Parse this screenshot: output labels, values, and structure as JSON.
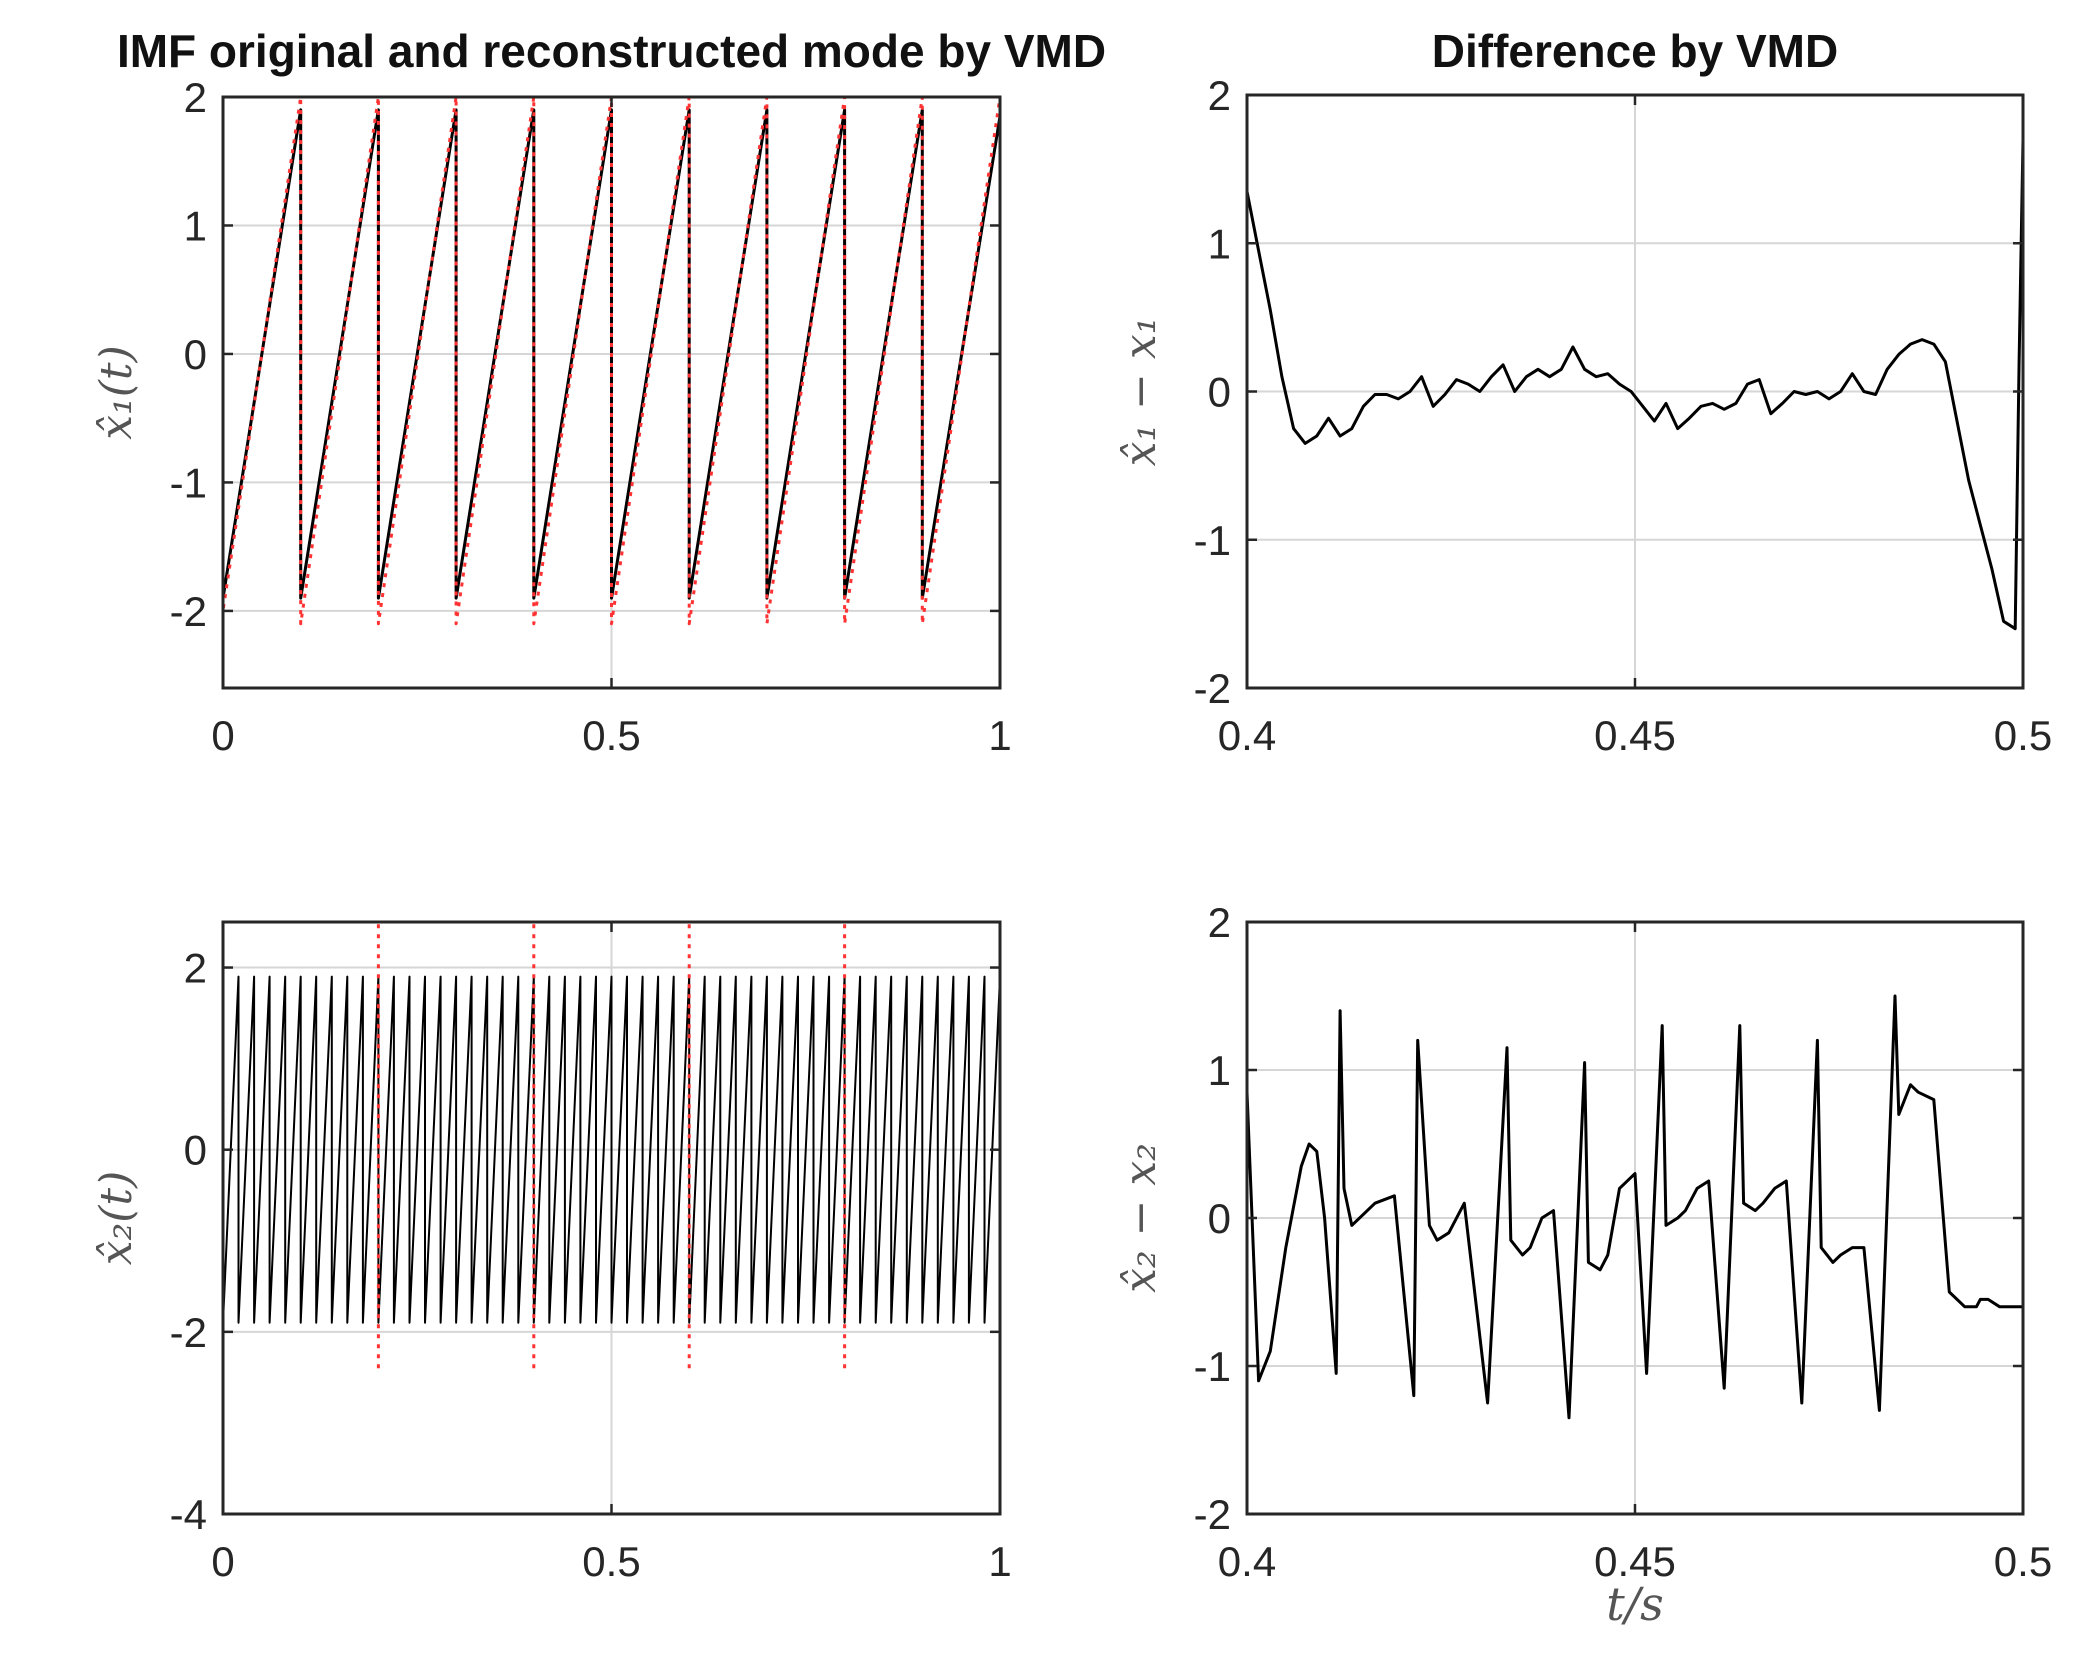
{
  "chart_data": [
    {
      "id": "top-left",
      "type": "line",
      "title": "IMF original and reconstructed mode by VMD",
      "xlabel": "",
      "ylabel": "x̂₁(t)",
      "xlim": [
        0,
        1
      ],
      "ylim": [
        -2.6,
        2
      ],
      "xticks": [
        0,
        0.5,
        1
      ],
      "xtick_labels": [
        "0",
        "0.5",
        "1"
      ],
      "yticks": [
        -2,
        -1,
        0,
        1,
        2
      ],
      "ytick_labels": [
        "-2",
        "-1",
        "0",
        "1",
        "2"
      ],
      "grid": true,
      "series": [
        {
          "style": "solid",
          "color": "#000000",
          "x": [
            0,
            0.1,
            0.1,
            0.2,
            0.2,
            0.3,
            0.3,
            0.4,
            0.4,
            0.5,
            0.5,
            0.6,
            0.6,
            0.7,
            0.7,
            0.8,
            0.8,
            0.9,
            0.9,
            1.0
          ],
          "y": [
            -1.9,
            1.9,
            -1.9,
            1.9,
            -1.9,
            1.9,
            -1.9,
            1.9,
            -1.9,
            1.9,
            -1.9,
            1.9,
            -1.9,
            1.9,
            -1.9,
            1.9,
            -1.9,
            1.9,
            -1.9,
            1.85
          ]
        },
        {
          "style": "dotted",
          "color": "#ff3333",
          "x": [
            0,
            0,
            0.1,
            0.1,
            0.2,
            0.2,
            0.3,
            0.3,
            0.4,
            0.4,
            0.5,
            0.5,
            0.6,
            0.6,
            0.7,
            0.7,
            0.8,
            0.8,
            0.9,
            0.9,
            1.0
          ],
          "y": [
            -2.6,
            -2.0,
            2.0,
            -2.1,
            2.0,
            -2.1,
            2.0,
            -2.1,
            2.0,
            -2.1,
            2.0,
            -2.1,
            2.0,
            -2.1,
            2.0,
            -2.1,
            2.0,
            -2.1,
            2.0,
            -2.1,
            2.0
          ]
        }
      ]
    },
    {
      "id": "top-right",
      "type": "line",
      "title": "Difference by VMD",
      "xlabel": "",
      "ylabel": "x̂₁ − x₁",
      "xlim": [
        0.4,
        0.5
      ],
      "ylim": [
        -2,
        2
      ],
      "xticks": [
        0.4,
        0.45,
        0.5
      ],
      "xtick_labels": [
        "0.4",
        "0.45",
        "0.5"
      ],
      "yticks": [
        -2,
        -1,
        0,
        1,
        2
      ],
      "ytick_labels": [
        "-2",
        "-1",
        "0",
        "1",
        "2"
      ],
      "grid": true,
      "series": [
        {
          "style": "solid",
          "color": "#000000",
          "x": [
            0.4,
            0.4015,
            0.403,
            0.4045,
            0.406,
            0.4075,
            0.409,
            0.4105,
            0.412,
            0.4135,
            0.415,
            0.4165,
            0.418,
            0.4195,
            0.421,
            0.4225,
            0.424,
            0.4255,
            0.427,
            0.4285,
            0.43,
            0.4315,
            0.433,
            0.4345,
            0.436,
            0.4375,
            0.439,
            0.4405,
            0.442,
            0.4435,
            0.445,
            0.4465,
            0.448,
            0.4495,
            0.451,
            0.4525,
            0.454,
            0.4555,
            0.457,
            0.4585,
            0.46,
            0.4615,
            0.463,
            0.4645,
            0.466,
            0.4675,
            0.469,
            0.4705,
            0.472,
            0.4735,
            0.475,
            0.4765,
            0.478,
            0.4795,
            0.481,
            0.4825,
            0.484,
            0.4855,
            0.487,
            0.4885,
            0.49,
            0.4915,
            0.493,
            0.4945,
            0.496,
            0.4975,
            0.499,
            0.4995,
            0.5
          ],
          "y": [
            1.35,
            0.95,
            0.55,
            0.1,
            -0.25,
            -0.35,
            -0.3,
            -0.18,
            -0.3,
            -0.25,
            -0.1,
            -0.02,
            -0.02,
            -0.05,
            0.0,
            0.1,
            -0.1,
            -0.02,
            0.08,
            0.05,
            0.0,
            0.1,
            0.18,
            0.0,
            0.1,
            0.15,
            0.1,
            0.15,
            0.3,
            0.15,
            0.1,
            0.12,
            0.05,
            0.0,
            -0.1,
            -0.2,
            -0.08,
            -0.25,
            -0.18,
            -0.1,
            -0.08,
            -0.12,
            -0.08,
            0.05,
            0.08,
            -0.15,
            -0.08,
            0.0,
            -0.02,
            0.0,
            -0.05,
            0.0,
            0.12,
            0.0,
            -0.02,
            0.15,
            0.25,
            0.32,
            0.35,
            0.32,
            0.2,
            -0.2,
            -0.6,
            -0.9,
            -1.2,
            -1.55,
            -1.6,
            0.2,
            1.7
          ]
        }
      ]
    },
    {
      "id": "bottom-left",
      "type": "line",
      "title": "",
      "xlabel": "",
      "ylabel": "x̂₂(t)",
      "xlim": [
        0,
        1
      ],
      "ylim": [
        -4,
        2.5
      ],
      "xticks": [
        0,
        0.5,
        1
      ],
      "xtick_labels": [
        "0",
        "0.5",
        "1"
      ],
      "yticks": [
        -4,
        -2,
        0,
        2
      ],
      "ytick_labels": [
        "-4",
        "-2",
        "0",
        "2"
      ],
      "grid": true,
      "series": [
        {
          "style": "solid",
          "color": "#000000",
          "description": "dense sawtooth oscillation, about 50 cycles, amplitude about 1.9",
          "cycles": 50,
          "amplitude": 1.9
        },
        {
          "style": "dotted",
          "color": "#ff3333",
          "description": "vertical spikes every 0.2",
          "spike_x": [
            0.2,
            0.4,
            0.6,
            0.8,
            1.0
          ],
          "spike_ymax": 2.5,
          "spike_ymin": -2.4
        }
      ]
    },
    {
      "id": "bottom-right",
      "type": "line",
      "title": "",
      "xlabel": "t/s",
      "ylabel": "x̂₂ − x₂",
      "xlim": [
        0.4,
        0.5
      ],
      "ylim": [
        -2,
        2
      ],
      "xticks": [
        0.4,
        0.45,
        0.5
      ],
      "xtick_labels": [
        "0.4",
        "0.45",
        "0.5"
      ],
      "yticks": [
        -2,
        -1,
        0,
        1,
        2
      ],
      "ytick_labels": [
        "-2",
        "-1",
        "0",
        "1",
        "2"
      ],
      "grid": true,
      "series": [
        {
          "style": "solid",
          "color": "#000000",
          "x": [
            0.4,
            0.4015,
            0.403,
            0.405,
            0.407,
            0.408,
            0.409,
            0.41,
            0.4115,
            0.412,
            0.4125,
            0.4135,
            0.4165,
            0.419,
            0.4215,
            0.422,
            0.4235,
            0.4245,
            0.426,
            0.428,
            0.431,
            0.4335,
            0.434,
            0.4355,
            0.4365,
            0.438,
            0.4395,
            0.4415,
            0.4435,
            0.444,
            0.4455,
            0.4465,
            0.448,
            0.45,
            0.4515,
            0.4535,
            0.454,
            0.4555,
            0.4565,
            0.458,
            0.4595,
            0.4615,
            0.4635,
            0.464,
            0.4655,
            0.4665,
            0.468,
            0.4695,
            0.4715,
            0.4735,
            0.474,
            0.4755,
            0.4765,
            0.478,
            0.4795,
            0.4815,
            0.4835,
            0.484,
            0.4855,
            0.4865,
            0.4885,
            0.4905,
            0.4925,
            0.494,
            0.4945,
            0.4955,
            0.497,
            0.4985,
            0.5
          ],
          "y": [
            0.85,
            -1.1,
            -0.9,
            -0.2,
            0.35,
            0.5,
            0.45,
            0.0,
            -1.05,
            1.4,
            0.2,
            -0.05,
            0.1,
            0.15,
            -1.2,
            1.2,
            -0.05,
            -0.15,
            -0.1,
            0.1,
            -1.25,
            1.15,
            -0.15,
            -0.25,
            -0.2,
            0.0,
            0.05,
            -1.35,
            1.05,
            -0.3,
            -0.35,
            -0.25,
            0.2,
            0.3,
            -1.05,
            1.3,
            -0.05,
            0.0,
            0.05,
            0.2,
            0.25,
            -1.15,
            1.3,
            0.1,
            0.05,
            0.1,
            0.2,
            0.25,
            -1.25,
            1.2,
            -0.2,
            -0.3,
            -0.25,
            -0.2,
            -0.2,
            -1.3,
            1.5,
            0.7,
            0.9,
            0.85,
            0.8,
            -0.5,
            -0.6,
            -0.6,
            -0.55,
            -0.55,
            -0.6,
            -0.6,
            -0.6
          ]
        }
      ]
    }
  ]
}
